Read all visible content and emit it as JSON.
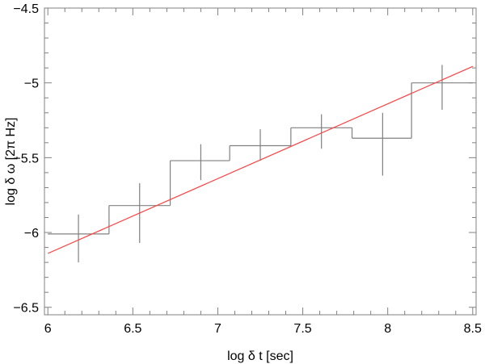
{
  "chart_data": {
    "type": "line",
    "title": "",
    "xlabel": "log δ t [sec]",
    "ylabel": "log δ ω [2π Hz]",
    "xlim": [
      5.98,
      8.52
    ],
    "ylim": [
      -6.55,
      -4.5
    ],
    "x_ticks": [
      {
        "value": 6,
        "label": "6"
      },
      {
        "value": 6.5,
        "label": "6.5"
      },
      {
        "value": 7,
        "label": "7"
      },
      {
        "value": 7.5,
        "label": "7.5"
      },
      {
        "value": 8,
        "label": "8"
      },
      {
        "value": 8.5,
        "label": "8.5"
      }
    ],
    "y_ticks": [
      {
        "value": -4.5,
        "label": "−4.5"
      },
      {
        "value": -5,
        "label": "−5"
      },
      {
        "value": -5.5,
        "label": "−5.5"
      },
      {
        "value": -6,
        "label": "−6"
      },
      {
        "value": -6.5,
        "label": "−6.5"
      }
    ],
    "grid": false,
    "minor_ticks": true,
    "series": [
      {
        "kind": "step",
        "color": "#808080",
        "bins": [
          {
            "x0": 6.0,
            "x1": 6.36,
            "y": -6.01
          },
          {
            "x0": 6.36,
            "x1": 6.72,
            "y": -5.82
          },
          {
            "x0": 6.72,
            "x1": 7.07,
            "y": -5.52
          },
          {
            "x0": 7.07,
            "x1": 7.43,
            "y": -5.42
          },
          {
            "x0": 7.43,
            "x1": 7.79,
            "y": -5.3
          },
          {
            "x0": 7.79,
            "x1": 8.14,
            "y": -5.37
          },
          {
            "x0": 8.14,
            "x1": 8.5,
            "y": -5.0
          }
        ],
        "error_bars": [
          {
            "x": 6.18,
            "y": -6.02,
            "low": -6.2,
            "high": -5.88
          },
          {
            "x": 6.54,
            "y": -5.83,
            "low": -6.07,
            "high": -5.67
          },
          {
            "x": 6.9,
            "y": -5.52,
            "low": -5.65,
            "high": -5.41
          },
          {
            "x": 7.25,
            "y": -5.42,
            "low": -5.52,
            "high": -5.31
          },
          {
            "x": 7.61,
            "y": -5.31,
            "low": -5.44,
            "high": -5.21
          },
          {
            "x": 7.97,
            "y": -5.37,
            "low": -5.62,
            "high": -5.2
          },
          {
            "x": 8.32,
            "y": -5.0,
            "low": -5.18,
            "high": -4.88
          }
        ]
      },
      {
        "kind": "fit-line",
        "color": "#ff4040",
        "x": [
          6.0,
          8.5
        ],
        "y": [
          -6.14,
          -4.89
        ]
      }
    ]
  }
}
